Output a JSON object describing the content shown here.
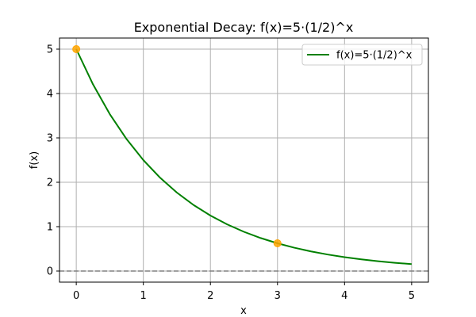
{
  "chart_data": {
    "type": "line",
    "title": "Exponential Decay: f(x)=5·(1/2)^x",
    "xlabel": "x",
    "ylabel": "f(x)",
    "xlim": [
      -0.25,
      5.25
    ],
    "ylim": [
      -0.25,
      5.25
    ],
    "x_ticks": [
      0,
      1,
      2,
      3,
      4,
      5
    ],
    "y_ticks": [
      0,
      1,
      2,
      3,
      4,
      5
    ],
    "grid": true,
    "legend": {
      "placement": "top-right",
      "entries": [
        "f(x)=5·(1/2)^x"
      ]
    },
    "series": [
      {
        "name": "f(x)=5·(1/2)^x",
        "color": "#008000",
        "x": [
          0,
          0.25,
          0.5,
          0.75,
          1,
          1.25,
          1.5,
          1.75,
          2,
          2.25,
          2.5,
          2.75,
          3,
          3.25,
          3.5,
          3.75,
          4,
          4.25,
          4.5,
          4.75,
          5
        ],
        "y": [
          5,
          4.2045,
          3.5355,
          2.973,
          2.5,
          2.1022,
          1.7678,
          1.4865,
          1.25,
          1.0511,
          0.8839,
          0.7433,
          0.625,
          0.5256,
          0.4419,
          0.3716,
          0.3125,
          0.2628,
          0.221,
          0.1858,
          0.15625
        ]
      }
    ],
    "highlight_points": [
      {
        "x": 0,
        "y": 5,
        "color": "#FFA500"
      },
      {
        "x": 3,
        "y": 0.625,
        "color": "#FFA500"
      }
    ],
    "asymptote": {
      "y": 0,
      "color": "#808080",
      "style": "dashed"
    },
    "colors": {
      "grid": "#b0b0b0",
      "axes": "#000000"
    }
  }
}
